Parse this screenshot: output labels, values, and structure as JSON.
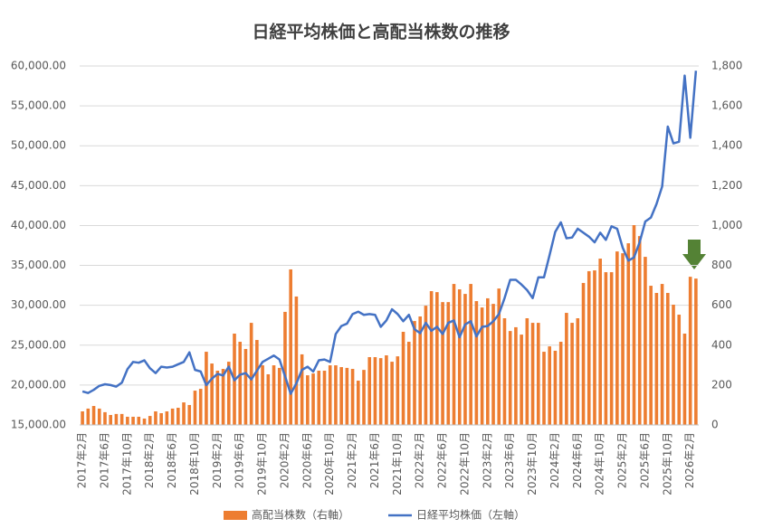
{
  "chart_data": {
    "type": "bar",
    "title": "日経平均株価と高配当株数の推移",
    "categories": [
      "2017年2月",
      null,
      null,
      null,
      "2017年6月",
      null,
      null,
      null,
      "2017年10月",
      null,
      null,
      null,
      "2018年2月",
      null,
      null,
      null,
      "2018年6月",
      null,
      null,
      null,
      "2018年10月",
      null,
      null,
      null,
      "2019年2月",
      null,
      null,
      null,
      "2019年6月",
      null,
      null,
      null,
      "2019年10月",
      null,
      null,
      null,
      "2020年2月",
      null,
      null,
      null,
      "2020年6月",
      null,
      null,
      null,
      "2020年10月",
      null,
      null,
      null,
      "2021年2月",
      null,
      null,
      null,
      "2021年6月",
      null,
      null,
      null,
      "2021年10月",
      null,
      null,
      null,
      "2022年2月",
      null,
      null,
      null,
      "2022年6月",
      null,
      null,
      null,
      "2022年10月",
      null,
      null,
      null,
      "2023年2月",
      null,
      null,
      null,
      "2023年6月",
      null,
      null,
      null,
      "2023年10月",
      null,
      null,
      null,
      "2024年2月",
      null,
      null,
      null,
      "2024年6月",
      null,
      null,
      null,
      "2024年10月",
      null,
      null,
      null,
      "2025年2月",
      null,
      null,
      null,
      "2025年6月",
      null,
      null,
      null,
      "2025年10月",
      null,
      null,
      null,
      "2026年2月",
      null
    ],
    "series": [
      {
        "name": "高配当株数（右軸）",
        "type": "bar",
        "axis": "y2",
        "color": "#ed7d31",
        "values": [
          68,
          82,
          95,
          82,
          64,
          50,
          55,
          55,
          41,
          41,
          41,
          32,
          45,
          68,
          59,
          68,
          82,
          86,
          113,
          100,
          172,
          181,
          367,
          308,
          272,
          281,
          317,
          458,
          417,
          381,
          512,
          426,
          299,
          254,
          299,
          286,
          567,
          780,
          644,
          354,
          249,
          258,
          272,
          272,
          299,
          299,
          290,
          286,
          281,
          222,
          276,
          340,
          340,
          335,
          349,
          317,
          344,
          467,
          417,
          521,
          544,
          598,
          671,
          666,
          616,
          616,
          707,
          680,
          657,
          707,
          621,
          589,
          635,
          607,
          684,
          535,
          471,
          490,
          453,
          535,
          512,
          512,
          367,
          394,
          372,
          417,
          562,
          512,
          535,
          712,
          771,
          775,
          834,
          766,
          766,
          870,
          861,
          911,
          1002,
          947,
          843,
          698,
          662,
          707,
          662,
          603,
          553,
          458,
          743,
          734
        ]
      },
      {
        "name": "日経平均株価（左軸）",
        "type": "line",
        "color": "#4472c4",
        "values": [
          19200,
          19000,
          19400,
          19900,
          20100,
          20000,
          19800,
          20300,
          22000,
          22900,
          22800,
          23100,
          22100,
          21500,
          22300,
          22200,
          22300,
          22600,
          22900,
          24100,
          21900,
          21700,
          20000,
          20800,
          21400,
          21200,
          22300,
          20600,
          21300,
          21500,
          20700,
          21800,
          22900,
          23300,
          23700,
          23200,
          21100,
          18900,
          20200,
          21900,
          22300,
          21700,
          23100,
          23200,
          22900,
          26400,
          27400,
          27700,
          28900,
          29200,
          28800,
          28900,
          28800,
          27300,
          28100,
          29500,
          28900,
          28000,
          28800,
          27000,
          26500,
          27800,
          26800,
          27300,
          26400,
          27800,
          28100,
          26000,
          27600,
          28000,
          26100,
          27300,
          27400,
          28000,
          28900,
          30900,
          33200,
          33200,
          32600,
          31900,
          30900,
          33500,
          33500,
          36300,
          39200,
          40400,
          38400,
          38500,
          39600,
          39100,
          38600,
          37900,
          39100,
          38200,
          39900,
          39600,
          37200,
          35600,
          36000,
          37900,
          40500,
          41000,
          42700,
          44900,
          52400,
          50300,
          50500,
          58800,
          51000,
          59400
        ]
      }
    ],
    "ylim": [
      15000,
      60000
    ],
    "yticks": [
      {
        "value": 15000,
        "label": "15,000.00"
      },
      {
        "value": 20000,
        "label": "20,000.00"
      },
      {
        "value": 25000,
        "label": "25,000.00"
      },
      {
        "value": 30000,
        "label": "30,000.00"
      },
      {
        "value": 35000,
        "label": "35,000.00"
      },
      {
        "value": 40000,
        "label": "40,000.00"
      },
      {
        "value": 45000,
        "label": "45,000.00"
      },
      {
        "value": 50000,
        "label": "50,000.00"
      },
      {
        "value": 55000,
        "label": "55,000.00"
      },
      {
        "value": 60000,
        "label": "60,000.00"
      }
    ],
    "y2lim": [
      0,
      1800
    ],
    "y2ticks": [
      0,
      200,
      400,
      600,
      800,
      {
        "value": 1000,
        "label": "1,000"
      },
      {
        "value": 1200,
        "label": "1,200"
      },
      {
        "value": 1400,
        "label": "1,400"
      },
      {
        "value": 1600,
        "label": "1,600"
      },
      {
        "value": 1800,
        "label": "1,800"
      }
    ],
    "grid": true,
    "legend": "bottom"
  }
}
